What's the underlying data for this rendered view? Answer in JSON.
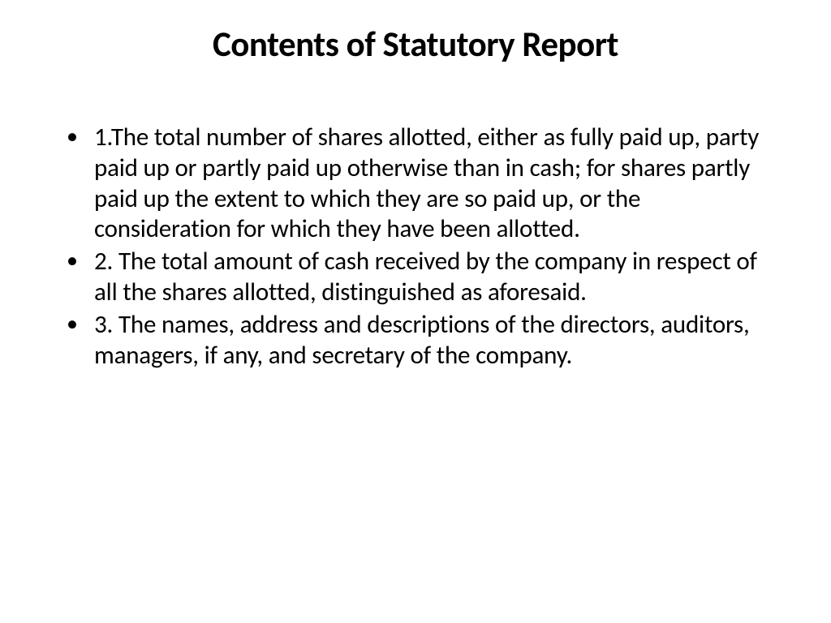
{
  "title": "Contents of Statutory Report",
  "items": [
    "1.The total number of shares allotted, either as fully paid up, party paid up or partly paid up otherwise than in cash; for shares partly paid up the extent to which they are so paid up, or the consideration for which they have been allotted.",
    "2. The total amount of cash received by the company in respect of all the shares allotted, distinguished as aforesaid.",
    "3. The names, address and descriptions of the directors, auditors, managers, if any, and secretary of the company."
  ],
  "colors": {
    "background": "#ffffff",
    "text": "#000000"
  },
  "typography": {
    "title_fontsize": 43,
    "title_weight": 700,
    "body_fontsize": 31,
    "body_weight": 400,
    "font_family": "Calibri"
  }
}
